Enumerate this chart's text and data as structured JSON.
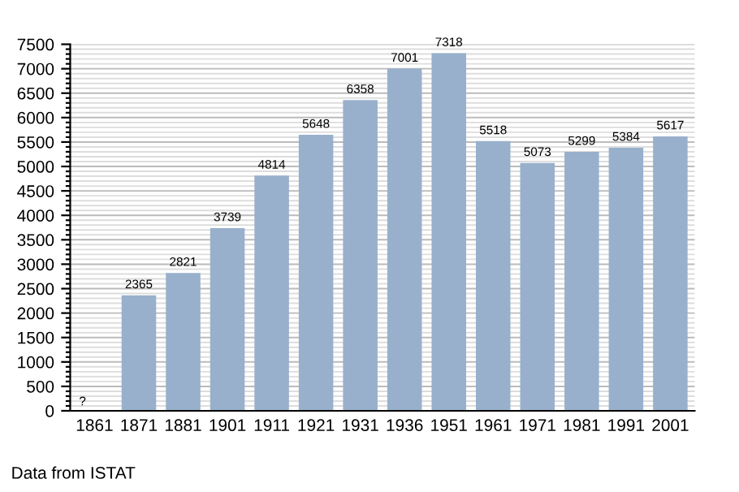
{
  "chart_data": {
    "type": "bar",
    "categories": [
      "1861",
      "1871",
      "1881",
      "1901",
      "1911",
      "1921",
      "1931",
      "1936",
      "1951",
      "1961",
      "1971",
      "1981",
      "1991",
      "2001"
    ],
    "values": [
      null,
      2365,
      2821,
      3739,
      4814,
      5648,
      6358,
      7001,
      7318,
      5518,
      5073,
      5299,
      5384,
      5617
    ],
    "value_labels": [
      "?",
      "2365",
      "2821",
      "3739",
      "4814",
      "5648",
      "6358",
      "7001",
      "7318",
      "5518",
      "5073",
      "5299",
      "5384",
      "5617"
    ],
    "color": "#98b0cc",
    "ylim": [
      0,
      7500
    ],
    "yticks": [
      0,
      {
        "value": 100,
        "label": null
      },
      {
        "value": 200,
        "label": null
      },
      {
        "value": 300,
        "label": null
      },
      {
        "value": 400,
        "label": null
      },
      500,
      {
        "value": 600,
        "label": null
      },
      {
        "value": 700,
        "label": null
      },
      {
        "value": 800,
        "label": null
      },
      {
        "value": 900,
        "label": null
      },
      1000,
      {
        "value": 1100,
        "label": null
      },
      {
        "value": 1200,
        "label": null
      },
      {
        "value": 1300,
        "label": null
      },
      {
        "value": 1400,
        "label": null
      },
      1500,
      {
        "value": 1600,
        "label": null
      },
      {
        "value": 1700,
        "label": null
      },
      {
        "value": 1800,
        "label": null
      },
      {
        "value": 1900,
        "label": null
      },
      2000,
      {
        "value": 2100,
        "label": null
      },
      {
        "value": 2200,
        "label": null
      },
      {
        "value": 2300,
        "label": null
      },
      {
        "value": 2400,
        "label": null
      },
      2500,
      {
        "value": 2600,
        "label": null
      },
      {
        "value": 2700,
        "label": null
      },
      {
        "value": 2800,
        "label": null
      },
      {
        "value": 2900,
        "label": null
      },
      3000,
      {
        "value": 3100,
        "label": null
      },
      {
        "value": 3200,
        "label": null
      },
      {
        "value": 3300,
        "label": null
      },
      {
        "value": 3400,
        "label": null
      },
      3500,
      {
        "value": 3600,
        "label": null
      },
      {
        "value": 3700,
        "label": null
      },
      {
        "value": 3800,
        "label": null
      },
      {
        "value": 3900,
        "label": null
      },
      4000,
      {
        "value": 4100,
        "label": null
      },
      {
        "value": 4200,
        "label": null
      },
      {
        "value": 4300,
        "label": null
      },
      {
        "value": 4400,
        "label": null
      },
      4500,
      {
        "value": 4600,
        "label": null
      },
      {
        "value": 4700,
        "label": null
      },
      {
        "value": 4800,
        "label": null
      },
      {
        "value": 4900,
        "label": null
      },
      5000,
      {
        "value": 5100,
        "label": null
      },
      {
        "value": 5200,
        "label": null
      },
      {
        "value": 5300,
        "label": null
      },
      {
        "value": 5400,
        "label": null
      },
      5500,
      {
        "value": 5600,
        "label": null
      },
      {
        "value": 5700,
        "label": null
      },
      {
        "value": 5800,
        "label": null
      },
      {
        "value": 5900,
        "label": null
      },
      6000,
      {
        "value": 6100,
        "label": null
      },
      {
        "value": 6200,
        "label": null
      },
      {
        "value": 6300,
        "label": null
      },
      {
        "value": 6400,
        "label": null
      },
      6500,
      {
        "value": 6600,
        "label": null
      },
      {
        "value": 6700,
        "label": null
      },
      {
        "value": 6800,
        "label": null
      },
      {
        "value": 6900,
        "label": null
      },
      7000,
      {
        "value": 7100,
        "label": null
      },
      {
        "value": 7200,
        "label": null
      },
      {
        "value": 7300,
        "label": null
      },
      {
        "value": 7400,
        "label": null
      },
      7500
    ],
    "grid": "y",
    "annotations": [
      "Data from ISTAT"
    ]
  }
}
